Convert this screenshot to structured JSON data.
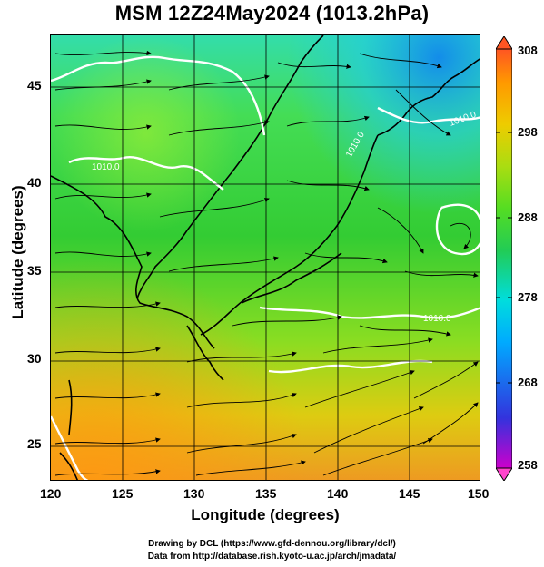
{
  "title": "MSM 12Z24May2024 (1013.2hPa)",
  "x_axis": {
    "label": "Longitude (degrees)",
    "ticks": [
      "120",
      "125",
      "130",
      "135",
      "140",
      "145",
      "150"
    ],
    "range": [
      120,
      150
    ]
  },
  "y_axis": {
    "label": "Latitude  (degrees)",
    "ticks": [
      "25",
      "30",
      "35",
      "40",
      "45"
    ],
    "range": [
      22.4,
      47.6
    ]
  },
  "colorbar": {
    "ticks": [
      "308",
      "298",
      "288",
      "278",
      "268",
      "258"
    ],
    "range": [
      258,
      308
    ],
    "colors": [
      "#cc00cc",
      "#3333dd",
      "#00aaff",
      "#00dddd",
      "#22cc55",
      "#55dd22",
      "#aadd11",
      "#eecc00",
      "#ff9900",
      "#ff5522"
    ]
  },
  "contour_labels": [
    "1010.0",
    "1010.0",
    "1010.0",
    "1010.0"
  ],
  "credits": {
    "line1": "Drawing by DCL (https://www.gfd-dennou.org/library/dcl/)",
    "line2": "Data from http://database.rish.kyoto-u.ac.jp/arch/jmadata/"
  }
}
